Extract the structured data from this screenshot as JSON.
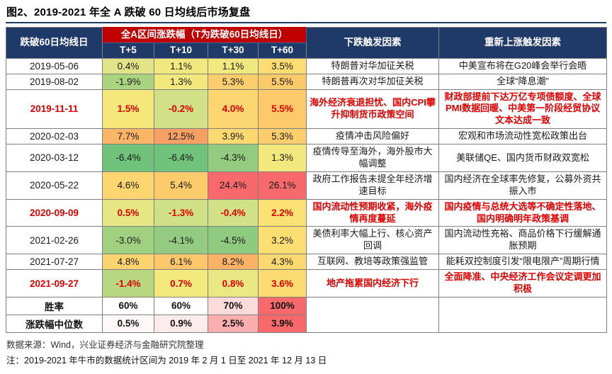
{
  "title": "图2、2019-2021 年全 A 跌破 60 日均线后市场复盘",
  "colors": {
    "header_navy": "#1f3a68",
    "banner_red": "#c00000",
    "highlight_red": "#e00000",
    "heatmap_max_red": "#f8696b",
    "heatmap_green": "#71c37c"
  },
  "table": {
    "header": {
      "col_date": "跌破60日均线日",
      "banner": "全A区间涨跌幅（T为跌破60日均线日）",
      "sub_cols": [
        "T+5",
        "T+10",
        "T+30",
        "T+60"
      ],
      "col_down": "下跌触发因素",
      "col_up": "重新上涨触发因素"
    },
    "rows": [
      {
        "date": "2019-05-06",
        "highlight": false,
        "values": [
          "0.4%",
          "1.1%",
          "1.1%",
          "3.5%"
        ],
        "colors": [
          "#e2e48a",
          "#f1e97f",
          "#f1e97f",
          "#fcdd73"
        ],
        "down": "特朗普对华加征关税",
        "up": "中美宣布将在G20峰会举行会晤"
      },
      {
        "date": "2019-08-02",
        "highlight": false,
        "values": [
          "-1.9%",
          "1.3%",
          "5.3%",
          "5.5%"
        ],
        "colors": [
          "#abd480",
          "#f2e87d",
          "#fccd6d",
          "#fcca6b"
        ],
        "down": "特朗普再次对华加征关税",
        "up": "全球“降息潮”"
      },
      {
        "date": "2019-11-11",
        "highlight": true,
        "values": [
          "1.5%",
          "-0.2%",
          "4.0%",
          "5.5%"
        ],
        "colors": [
          "#f6e77a",
          "#d2e187",
          "#fcd771",
          "#fcca6b"
        ],
        "down": "海外经济衰退担忧、国内CPI攀升抑制货币政策空间",
        "up": "财政部提前下达万亿专项债额度、全球PMI数据回暖、中美第一阶段经贸协议文本达成一致"
      },
      {
        "date": "2020-02-03",
        "highlight": false,
        "values": [
          "7.7%",
          "12.5%",
          "3.9%",
          "5.3%"
        ],
        "colors": [
          "#fab567",
          "#f6a163",
          "#fcd870",
          "#fccd6d"
        ],
        "down": "疫情冲击风险偏好",
        "up": "宏观和市场流动性宽松政策出台"
      },
      {
        "date": "2020-03-12",
        "highlight": false,
        "values": [
          "-6.4%",
          "-6.4%",
          "-4.3%",
          "1.3%"
        ],
        "colors": [
          "#71c37c",
          "#71c37c",
          "#93cc80",
          "#f2e87d"
        ],
        "down": "疫情传导至海外，海外股市大幅调整",
        "up": "美联储QE、国内货币财政双宽松"
      },
      {
        "date": "2020-05-22",
        "highlight": false,
        "values": [
          "4.6%",
          "5.4%",
          "24.4%",
          "26.1%"
        ],
        "colors": [
          "#fcd56f",
          "#fccb6c",
          "#f8696b",
          "#f8696b"
        ],
        "down": "政府工作报告未提全年经济增速目标",
        "up": "国内经济在全球率先修复，公募外资共振入市"
      },
      {
        "date": "2020-09-09",
        "highlight": true,
        "values": [
          "0.5%",
          "-1.3%",
          "-0.4%",
          "2.2%"
        ],
        "colors": [
          "#e7e684",
          "#cfe087",
          "#d1e187",
          "#fce275"
        ],
        "down": "国内流动性预期收紧，海外疫情再度蔓延",
        "up": "国内疫情与总统大选等不确定性落地、国内明确明年政策基调"
      },
      {
        "date": "2021-02-26",
        "highlight": false,
        "values": [
          "-3.0%",
          "-4.1%",
          "-4.5%",
          "3.2%"
        ],
        "colors": [
          "#a0d181",
          "#93cc80",
          "#8fcb7f",
          "#fcde73"
        ],
        "down": "美债利率大幅上行、核心资产回调",
        "up": "国内流动性充裕、商品价格下行缓解通胀预期"
      },
      {
        "date": "2021-07-27",
        "highlight": false,
        "values": [
          "4.8%",
          "6.1%",
          "8.2%",
          "4.3%"
        ],
        "colors": [
          "#fcd46f",
          "#fbc76a",
          "#f9b266",
          "#fcd970"
        ],
        "down": "互联网、教培等政策强监管",
        "up": "能耗双控制度引发“限电限产”周期行情"
      },
      {
        "date": "2021-09-27",
        "highlight": true,
        "values": [
          "-1.4%",
          "0.7%",
          "0.8%",
          "3.6%"
        ],
        "colors": [
          "#b7d881",
          "#f3e97c",
          "#eae785",
          "#fcdc72"
        ],
        "down": "地产拖累国内经济下行",
        "up": "全面降准、中央经济工作会议定调更加积极"
      }
    ],
    "summary_rows": [
      {
        "label": "胜率",
        "values": [
          "60%",
          "60%",
          "70%",
          "100%"
        ],
        "colors": [
          "#ffffff",
          "#ffffff",
          "#fbdbdc",
          "#f8696b"
        ]
      },
      {
        "label": "涨跌幅中位数",
        "values": [
          "0.5%",
          "0.9%",
          "2.5%",
          "3.9%"
        ],
        "colors": [
          "#fef8f8",
          "#fcebeb",
          "#fbaeb0",
          "#f8696b"
        ]
      }
    ]
  },
  "footer": {
    "source": "数据来源：Wind，兴业证券经济与金融研究院整理",
    "note": "注：2019-2021 年牛市的数据统计区间为 2019 年 2 月 1 日至 2021 年 12 月 13 日"
  }
}
